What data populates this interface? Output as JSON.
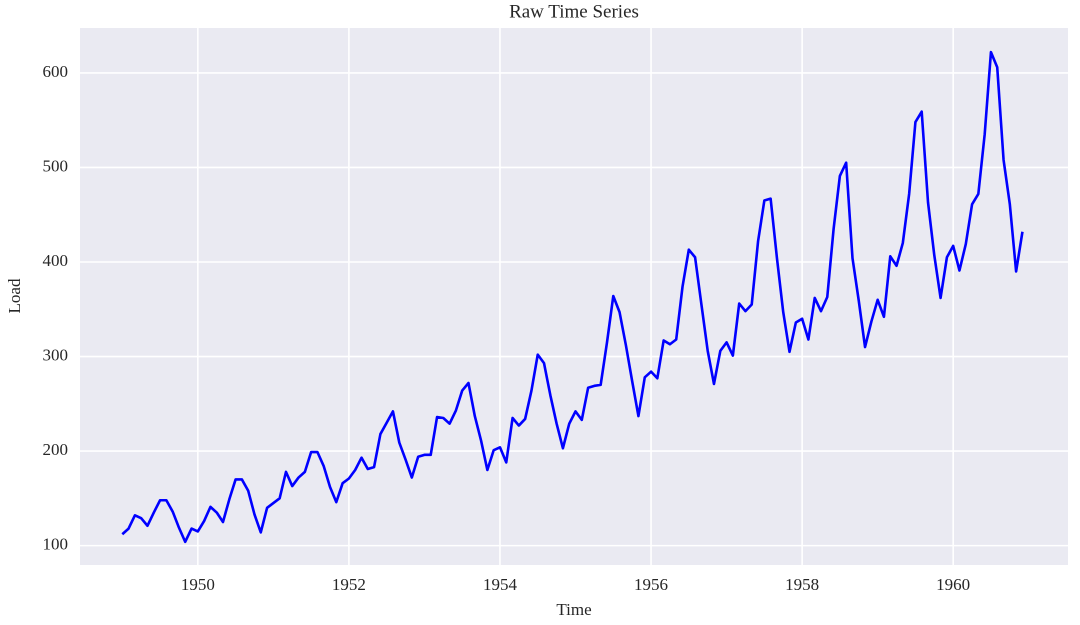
{
  "chart_data": {
    "type": "line",
    "title": "Raw Time Series",
    "x_label": "Time",
    "y_label": "Load",
    "x": [
      1949,
      1949.083,
      1949.167,
      1949.25,
      1949.333,
      1949.417,
      1949.5,
      1949.583,
      1949.667,
      1949.75,
      1949.833,
      1949.917,
      1950,
      1950.083,
      1950.167,
      1950.25,
      1950.333,
      1950.417,
      1950.5,
      1950.583,
      1950.667,
      1950.75,
      1950.833,
      1950.917,
      1951,
      1951.083,
      1951.167,
      1951.25,
      1951.333,
      1951.417,
      1951.5,
      1951.583,
      1951.667,
      1951.75,
      1951.833,
      1951.917,
      1952,
      1952.083,
      1952.167,
      1952.25,
      1952.333,
      1952.417,
      1952.5,
      1952.583,
      1952.667,
      1952.75,
      1952.833,
      1952.917,
      1953,
      1953.083,
      1953.167,
      1953.25,
      1953.333,
      1953.417,
      1953.5,
      1953.583,
      1953.667,
      1953.75,
      1953.833,
      1953.917,
      1954,
      1954.083,
      1954.167,
      1954.25,
      1954.333,
      1954.417,
      1954.5,
      1954.583,
      1954.667,
      1954.75,
      1954.833,
      1954.917,
      1955,
      1955.083,
      1955.167,
      1955.25,
      1955.333,
      1955.417,
      1955.5,
      1955.583,
      1955.667,
      1955.75,
      1955.833,
      1955.917,
      1956,
      1956.083,
      1956.167,
      1956.25,
      1956.333,
      1956.417,
      1956.5,
      1956.583,
      1956.667,
      1956.75,
      1956.833,
      1956.917,
      1957,
      1957.083,
      1957.167,
      1957.25,
      1957.333,
      1957.417,
      1957.5,
      1957.583,
      1957.667,
      1957.75,
      1957.833,
      1957.917,
      1958,
      1958.083,
      1958.167,
      1958.25,
      1958.333,
      1958.417,
      1958.5,
      1958.583,
      1958.667,
      1958.75,
      1958.833,
      1958.917,
      1959,
      1959.083,
      1959.167,
      1959.25,
      1959.333,
      1959.417,
      1959.5,
      1959.583,
      1959.667,
      1959.75,
      1959.833,
      1959.917,
      1960,
      1960.083,
      1960.167,
      1960.25,
      1960.333,
      1960.417,
      1960.5,
      1960.583,
      1960.667,
      1960.75,
      1960.833,
      1960.917
    ],
    "series": [
      {
        "name": "Load",
        "color": "#0000ff",
        "values": [
          112,
          118,
          132,
          129,
          121,
          135,
          148,
          148,
          136,
          119,
          104,
          118,
          115,
          126,
          141,
          135,
          125,
          149,
          170,
          170,
          158,
          133,
          114,
          140,
          145,
          150,
          178,
          163,
          172,
          178,
          199,
          199,
          184,
          162,
          146,
          166,
          171,
          180,
          193,
          181,
          183,
          218,
          230,
          242,
          209,
          191,
          172,
          194,
          196,
          196,
          236,
          235,
          229,
          243,
          264,
          272,
          237,
          211,
          180,
          201,
          204,
          188,
          235,
          227,
          234,
          264,
          302,
          293,
          259,
          229,
          203,
          229,
          242,
          233,
          267,
          269,
          270,
          315,
          364,
          347,
          312,
          274,
          237,
          278,
          284,
          277,
          317,
          313,
          318,
          374,
          413,
          405,
          355,
          306,
          271,
          306,
          315,
          301,
          356,
          348,
          355,
          422,
          465,
          467,
          404,
          347,
          305,
          336,
          340,
          318,
          362,
          348,
          363,
          435,
          491,
          505,
          404,
          359,
          310,
          337,
          360,
          342,
          406,
          396,
          420,
          472,
          548,
          559,
          463,
          407,
          362,
          405,
          417,
          391,
          419,
          461,
          472,
          535,
          622,
          606,
          508,
          461,
          390,
          432
        ]
      }
    ],
    "xlim": [
      1948.44,
      1961.52
    ],
    "xticks": [
      1950,
      1952,
      1954,
      1956,
      1958,
      1960
    ],
    "ylim": [
      79.5,
      647.5
    ],
    "yticks": [
      100,
      200,
      300,
      400,
      500,
      600
    ],
    "grid": true
  }
}
